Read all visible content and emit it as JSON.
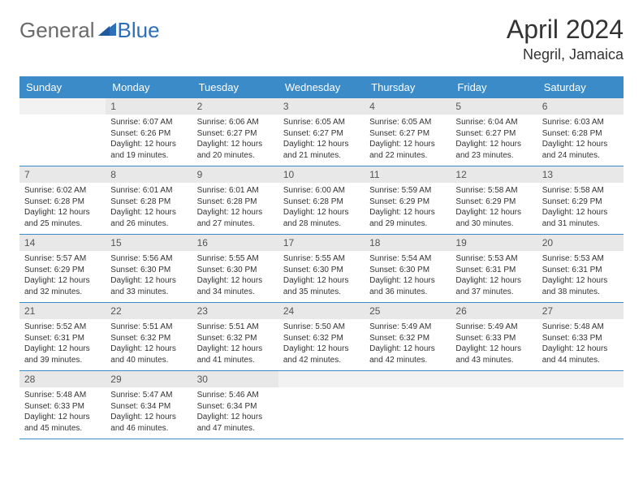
{
  "logo": {
    "general": "General",
    "blue": "Blue"
  },
  "title": "April 2024",
  "location": "Negril, Jamaica",
  "colors": {
    "header_bg": "#3b8bc9",
    "header_fg": "#ffffff",
    "daynum_bg": "#e8e8e8",
    "border": "#3b8bc9",
    "logo_gray": "#6a6a6a",
    "logo_blue": "#2d6fb8"
  },
  "day_headers": [
    "Sunday",
    "Monday",
    "Tuesday",
    "Wednesday",
    "Thursday",
    "Friday",
    "Saturday"
  ],
  "weeks": [
    [
      {
        "num": "",
        "lines": []
      },
      {
        "num": "1",
        "lines": [
          "Sunrise: 6:07 AM",
          "Sunset: 6:26 PM",
          "Daylight: 12 hours",
          "and 19 minutes."
        ]
      },
      {
        "num": "2",
        "lines": [
          "Sunrise: 6:06 AM",
          "Sunset: 6:27 PM",
          "Daylight: 12 hours",
          "and 20 minutes."
        ]
      },
      {
        "num": "3",
        "lines": [
          "Sunrise: 6:05 AM",
          "Sunset: 6:27 PM",
          "Daylight: 12 hours",
          "and 21 minutes."
        ]
      },
      {
        "num": "4",
        "lines": [
          "Sunrise: 6:05 AM",
          "Sunset: 6:27 PM",
          "Daylight: 12 hours",
          "and 22 minutes."
        ]
      },
      {
        "num": "5",
        "lines": [
          "Sunrise: 6:04 AM",
          "Sunset: 6:27 PM",
          "Daylight: 12 hours",
          "and 23 minutes."
        ]
      },
      {
        "num": "6",
        "lines": [
          "Sunrise: 6:03 AM",
          "Sunset: 6:28 PM",
          "Daylight: 12 hours",
          "and 24 minutes."
        ]
      }
    ],
    [
      {
        "num": "7",
        "lines": [
          "Sunrise: 6:02 AM",
          "Sunset: 6:28 PM",
          "Daylight: 12 hours",
          "and 25 minutes."
        ]
      },
      {
        "num": "8",
        "lines": [
          "Sunrise: 6:01 AM",
          "Sunset: 6:28 PM",
          "Daylight: 12 hours",
          "and 26 minutes."
        ]
      },
      {
        "num": "9",
        "lines": [
          "Sunrise: 6:01 AM",
          "Sunset: 6:28 PM",
          "Daylight: 12 hours",
          "and 27 minutes."
        ]
      },
      {
        "num": "10",
        "lines": [
          "Sunrise: 6:00 AM",
          "Sunset: 6:28 PM",
          "Daylight: 12 hours",
          "and 28 minutes."
        ]
      },
      {
        "num": "11",
        "lines": [
          "Sunrise: 5:59 AM",
          "Sunset: 6:29 PM",
          "Daylight: 12 hours",
          "and 29 minutes."
        ]
      },
      {
        "num": "12",
        "lines": [
          "Sunrise: 5:58 AM",
          "Sunset: 6:29 PM",
          "Daylight: 12 hours",
          "and 30 minutes."
        ]
      },
      {
        "num": "13",
        "lines": [
          "Sunrise: 5:58 AM",
          "Sunset: 6:29 PM",
          "Daylight: 12 hours",
          "and 31 minutes."
        ]
      }
    ],
    [
      {
        "num": "14",
        "lines": [
          "Sunrise: 5:57 AM",
          "Sunset: 6:29 PM",
          "Daylight: 12 hours",
          "and 32 minutes."
        ]
      },
      {
        "num": "15",
        "lines": [
          "Sunrise: 5:56 AM",
          "Sunset: 6:30 PM",
          "Daylight: 12 hours",
          "and 33 minutes."
        ]
      },
      {
        "num": "16",
        "lines": [
          "Sunrise: 5:55 AM",
          "Sunset: 6:30 PM",
          "Daylight: 12 hours",
          "and 34 minutes."
        ]
      },
      {
        "num": "17",
        "lines": [
          "Sunrise: 5:55 AM",
          "Sunset: 6:30 PM",
          "Daylight: 12 hours",
          "and 35 minutes."
        ]
      },
      {
        "num": "18",
        "lines": [
          "Sunrise: 5:54 AM",
          "Sunset: 6:30 PM",
          "Daylight: 12 hours",
          "and 36 minutes."
        ]
      },
      {
        "num": "19",
        "lines": [
          "Sunrise: 5:53 AM",
          "Sunset: 6:31 PM",
          "Daylight: 12 hours",
          "and 37 minutes."
        ]
      },
      {
        "num": "20",
        "lines": [
          "Sunrise: 5:53 AM",
          "Sunset: 6:31 PM",
          "Daylight: 12 hours",
          "and 38 minutes."
        ]
      }
    ],
    [
      {
        "num": "21",
        "lines": [
          "Sunrise: 5:52 AM",
          "Sunset: 6:31 PM",
          "Daylight: 12 hours",
          "and 39 minutes."
        ]
      },
      {
        "num": "22",
        "lines": [
          "Sunrise: 5:51 AM",
          "Sunset: 6:32 PM",
          "Daylight: 12 hours",
          "and 40 minutes."
        ]
      },
      {
        "num": "23",
        "lines": [
          "Sunrise: 5:51 AM",
          "Sunset: 6:32 PM",
          "Daylight: 12 hours",
          "and 41 minutes."
        ]
      },
      {
        "num": "24",
        "lines": [
          "Sunrise: 5:50 AM",
          "Sunset: 6:32 PM",
          "Daylight: 12 hours",
          "and 42 minutes."
        ]
      },
      {
        "num": "25",
        "lines": [
          "Sunrise: 5:49 AM",
          "Sunset: 6:32 PM",
          "Daylight: 12 hours",
          "and 42 minutes."
        ]
      },
      {
        "num": "26",
        "lines": [
          "Sunrise: 5:49 AM",
          "Sunset: 6:33 PM",
          "Daylight: 12 hours",
          "and 43 minutes."
        ]
      },
      {
        "num": "27",
        "lines": [
          "Sunrise: 5:48 AM",
          "Sunset: 6:33 PM",
          "Daylight: 12 hours",
          "and 44 minutes."
        ]
      }
    ],
    [
      {
        "num": "28",
        "lines": [
          "Sunrise: 5:48 AM",
          "Sunset: 6:33 PM",
          "Daylight: 12 hours",
          "and 45 minutes."
        ]
      },
      {
        "num": "29",
        "lines": [
          "Sunrise: 5:47 AM",
          "Sunset: 6:34 PM",
          "Daylight: 12 hours",
          "and 46 minutes."
        ]
      },
      {
        "num": "30",
        "lines": [
          "Sunrise: 5:46 AM",
          "Sunset: 6:34 PM",
          "Daylight: 12 hours",
          "and 47 minutes."
        ]
      },
      {
        "num": "",
        "lines": []
      },
      {
        "num": "",
        "lines": []
      },
      {
        "num": "",
        "lines": []
      },
      {
        "num": "",
        "lines": []
      }
    ]
  ]
}
